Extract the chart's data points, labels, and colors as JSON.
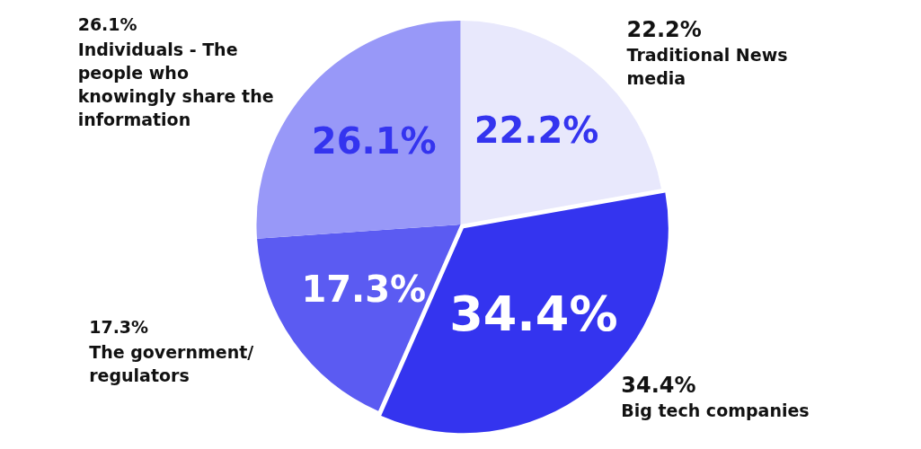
{
  "chart_data": {
    "type": "pie",
    "categories": [
      "Traditional News media",
      "Big tech companies",
      "The government/ regulators",
      "Individuals - The people who knowingly share the information"
    ],
    "values": [
      22.2,
      34.4,
      17.3,
      26.1
    ],
    "colors": [
      "#e8e8fc",
      "#3434ef",
      "#5b5bf2",
      "#9898f8"
    ],
    "value_labels": [
      "22.2%",
      "34.4%",
      "17.3%",
      "26.1%"
    ]
  }
}
